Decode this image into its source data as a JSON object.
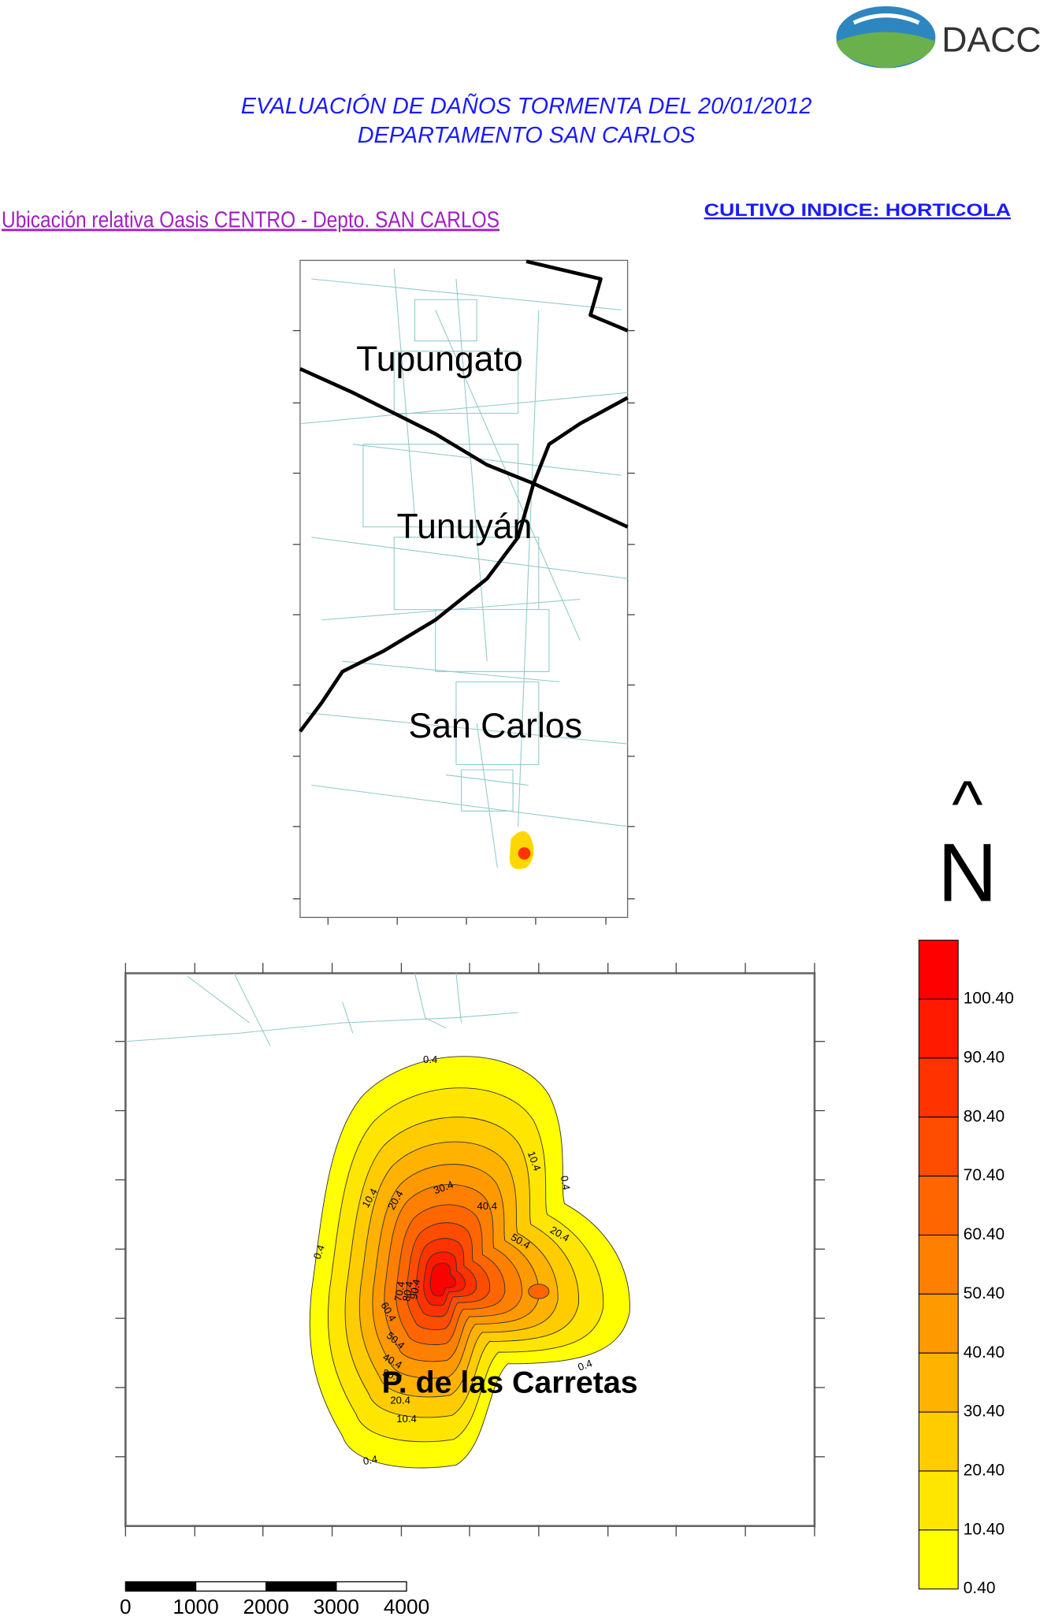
{
  "logo": {
    "text": "DACC"
  },
  "header": {
    "title_line1": "EVALUACIÓN DE DAÑOS TORMENTA DEL 20/01/2012",
    "title_line2": "DEPARTAMENTO SAN CARLOS"
  },
  "location_title": "Ubicación relativa Oasis CENTRO - Depto. SAN CARLOS",
  "crop_index": "CULTIVO INDICE: HORTICOLA",
  "overview_map": {
    "labels": [
      "Tupungato",
      "Tunuyán",
      "San Carlos"
    ]
  },
  "detail_map": {
    "label": "P. de las Carretas",
    "contour_labels": [
      "0.4",
      "10.4",
      "20.4",
      "30.4",
      "40.4",
      "50.4",
      "10.4",
      "0.4",
      "20.4",
      "0.4",
      "0.4",
      "10.4",
      "20.4",
      "30.4",
      "40.4",
      "50.4",
      "60.4",
      "70.4",
      "80.4",
      "90.4",
      "0.4"
    ]
  },
  "north_arrow": {
    "arrow": "^",
    "letter": "N"
  },
  "legend": {
    "labels": [
      "100.40",
      "90.40",
      "80.40",
      "70.40",
      "60.40",
      "50.40",
      "40.40",
      "30.40",
      "20.40",
      "10.40",
      "0.40"
    ]
  },
  "scale_bar": {
    "labels": [
      "0",
      "1000",
      "2000",
      "3000",
      "4000"
    ]
  }
}
